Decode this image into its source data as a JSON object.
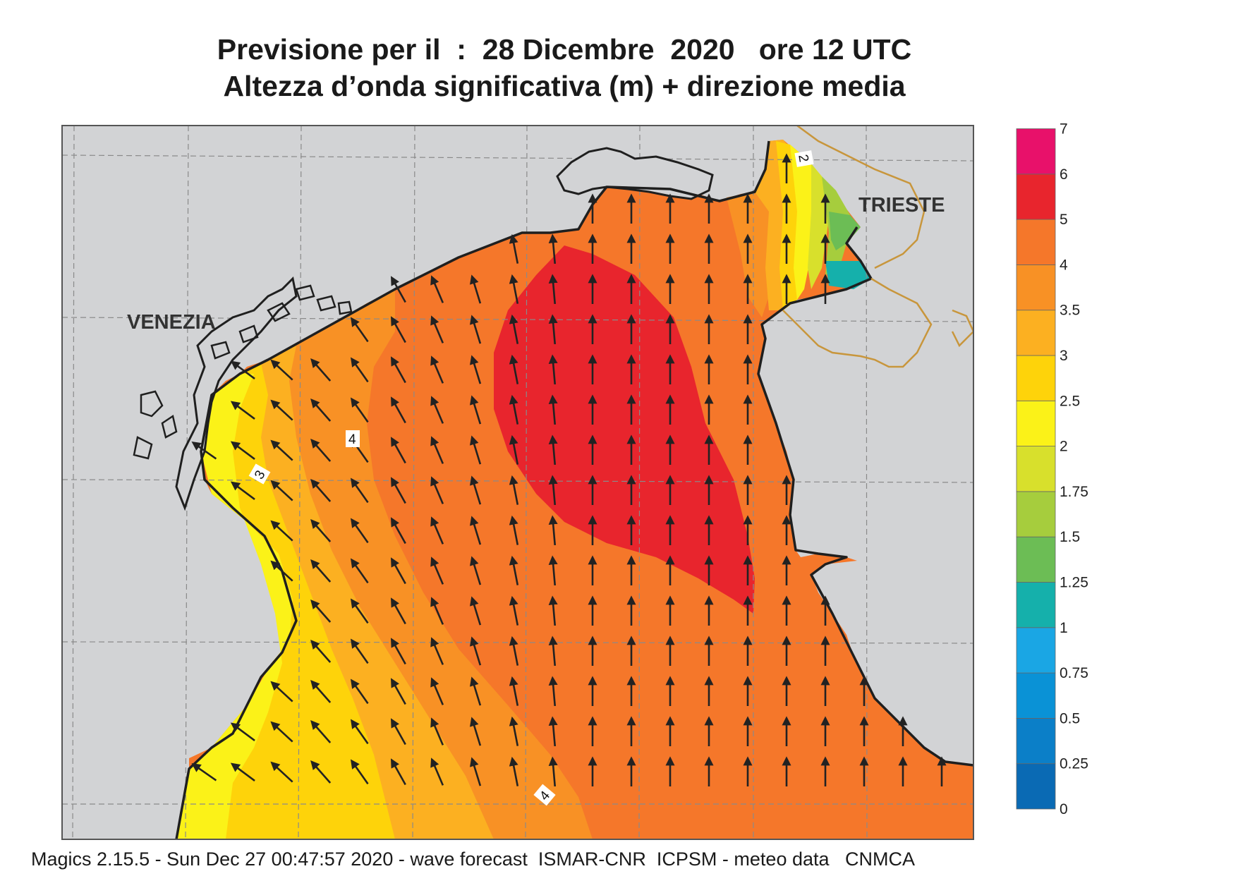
{
  "title": {
    "line1": "Previsione per il  :  28 Dicembre  2020   ore 12 UTC",
    "line2": "Altezza d’onda significativa (m) + direzione media"
  },
  "map": {
    "region": "Northern Adriatic Sea",
    "places": [
      {
        "name": "VENEZIA"
      },
      {
        "name": "TRIESTE"
      }
    ],
    "contour_labels": [
      "2",
      "3",
      "4",
      "4"
    ],
    "colors": {
      "land": "#d2d3d5",
      "coast": "#1f1f1f",
      "grid": "#8a8a8a",
      "border": "#c8963c",
      "arrow": "#222222"
    },
    "arrow_direction": "toward north / north-west"
  },
  "legend": {
    "levels": [
      "0",
      "0.25",
      "0.5",
      "0.75",
      "1",
      "1.25",
      "1.5",
      "1.75",
      "2",
      "2.5",
      "3",
      "3.5",
      "4",
      "5",
      "6",
      "7"
    ],
    "colors": [
      "#0a6ab4",
      "#0b7fc8",
      "#0a92d6",
      "#1aa6e4",
      "#15b0ab",
      "#6cbd55",
      "#a6cd3d",
      "#d8e02c",
      "#fbf218",
      "#fed30a",
      "#fcb021",
      "#f89125",
      "#f5772a",
      "#e8252d",
      "#e8116a"
    ],
    "unit": "m"
  },
  "footer": {
    "text": "Magics 2.15.5 - Sun Dec 27 00:47:57 2020 - wave forecast  ISMAR-CNR  ICPSM - meteo data   CNMCA"
  }
}
